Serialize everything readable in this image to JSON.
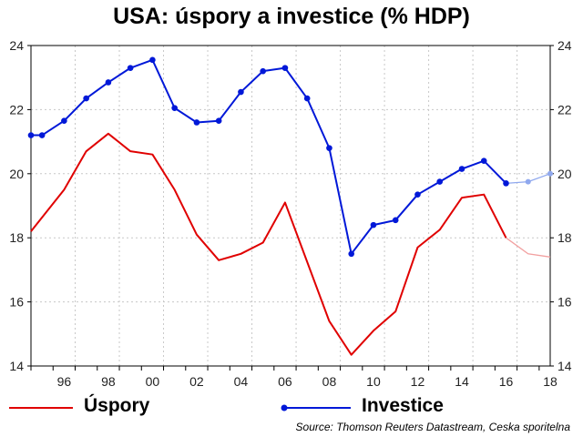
{
  "title": "USA: úspory a investice (% HDP)",
  "source": "Source: Thomson Reuters Datastream, Ceska sporitelna",
  "chart_data": {
    "type": "line",
    "title": "USA: úspory a investice (% HDP)",
    "xlim": [
      1995,
      2018.5
    ],
    "ylim": [
      14,
      24
    ],
    "grid": true,
    "legend": "bottom",
    "x_ticks": [
      "96",
      "98",
      "00",
      "02",
      "04",
      "06",
      "08",
      "10",
      "12",
      "14",
      "16",
      "18"
    ],
    "y_ticks": [
      "14",
      "16",
      "18",
      "20",
      "22",
      "24"
    ],
    "series": [
      {
        "name": "Úspory",
        "color": "#e00000",
        "forecast_color": "#f2a0a0",
        "marker": "none",
        "x": [
          1995,
          1996.5,
          1997.5,
          1998.5,
          1999.5,
          2000.5,
          2001.5,
          2002.5,
          2003.5,
          2004.5,
          2005.5,
          2006.5,
          2007.5,
          2008.5,
          2009.5,
          2010.5,
          2011.5,
          2012.5,
          2013.5,
          2014.5,
          2015.5,
          2016.5
        ],
        "values": [
          18.2,
          19.5,
          20.7,
          21.25,
          20.7,
          20.6,
          19.5,
          18.1,
          17.3,
          17.5,
          17.85,
          19.1,
          17.25,
          15.4,
          14.35,
          15.1,
          15.7,
          17.7,
          18.25,
          19.25,
          19.35,
          18.0
        ],
        "forecast_x": [
          2016.5,
          2017.5,
          2018.5
        ],
        "forecast_values": [
          18.0,
          17.5,
          17.4
        ]
      },
      {
        "name": "Investice",
        "color": "#0018d8",
        "forecast_color": "#8fa8ee",
        "marker": "circle",
        "x": [
          1995,
          1995.5,
          1996.5,
          1997.5,
          1998.5,
          1999.5,
          2000.5,
          2001.5,
          2002.5,
          2003.5,
          2004.5,
          2005.5,
          2006.5,
          2007.5,
          2008.5,
          2009.5,
          2010.5,
          2011.5,
          2012.5,
          2013.5,
          2014.5,
          2015.5,
          2016.5
        ],
        "values": [
          21.2,
          21.2,
          21.65,
          22.35,
          22.85,
          23.3,
          23.55,
          22.05,
          21.6,
          21.65,
          22.55,
          23.2,
          23.3,
          22.35,
          20.8,
          17.5,
          18.4,
          18.55,
          19.35,
          19.75,
          20.15,
          20.4,
          19.7
        ],
        "forecast_x": [
          2016.5,
          2017.5,
          2018.5
        ],
        "forecast_values": [
          19.7,
          19.75,
          20.0
        ]
      }
    ]
  },
  "legend": {
    "items": [
      {
        "label": "Úspory",
        "color": "#e00000"
      },
      {
        "label": "Investice",
        "color": "#0018d8"
      }
    ]
  }
}
